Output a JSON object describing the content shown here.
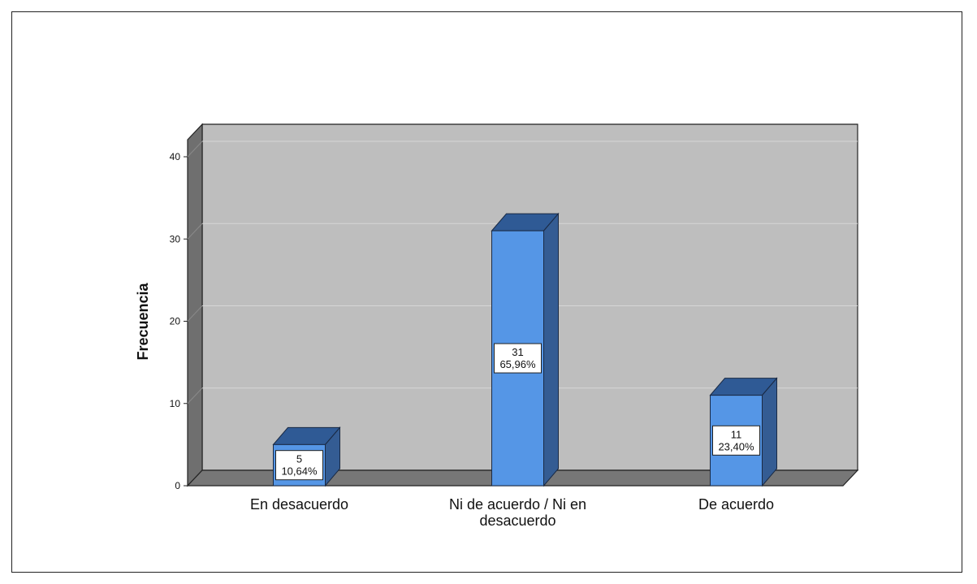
{
  "chart_data": {
    "type": "bar",
    "categories": [
      "En desacuerdo",
      "Ni de acuerdo / Ni en desacuerdo",
      "De acuerdo"
    ],
    "category_lines": [
      [
        "En desacuerdo"
      ],
      [
        "Ni de acuerdo / Ni en",
        "desacuerdo"
      ],
      [
        "De acuerdo"
      ]
    ],
    "values": [
      5,
      31,
      11
    ],
    "percent_labels": [
      "10,64%",
      "65,96%",
      "23,40%"
    ],
    "title": "",
    "xlabel": "",
    "ylabel": "Frecuencia",
    "ylim": [
      0,
      40
    ],
    "yticks": [
      0,
      10,
      20,
      30,
      40
    ],
    "grid": true,
    "style": "3d",
    "colors": {
      "bar_front": "#5596e6",
      "bar_top": "#2f5a95",
      "bar_side": "#345c93",
      "wall": "#bebebe",
      "left_wall": "#6f6f6f",
      "floor": "#777777",
      "gridline": "#d6d6d6"
    }
  }
}
